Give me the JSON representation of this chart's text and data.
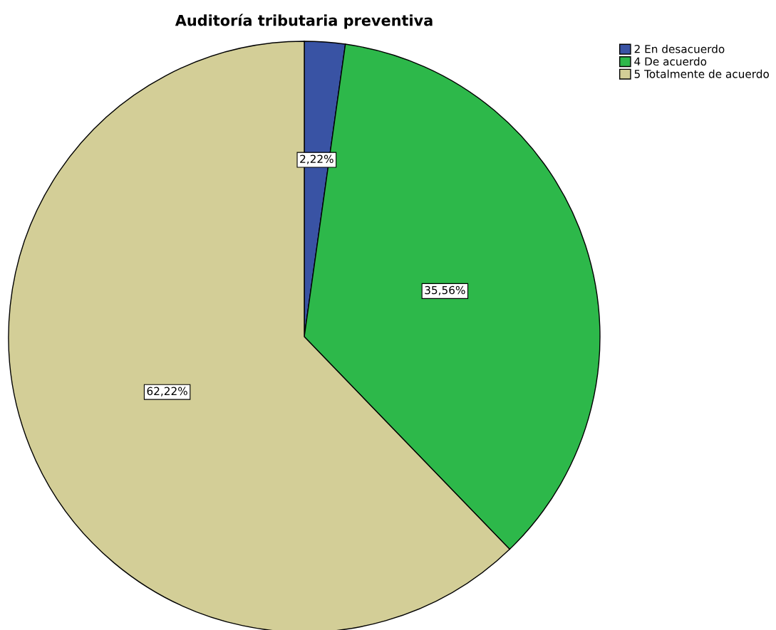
{
  "chart_data": {
    "type": "pie",
    "title": "Auditoría tributaria preventiva",
    "categories": [
      "2 En desacuerdo",
      "4 De acuerdo",
      "5 Totalmente de acuerdo"
    ],
    "values": [
      2.22,
      35.56,
      62.22
    ],
    "value_labels": [
      "2,22%",
      "35,56%",
      "62,22%"
    ],
    "colors": [
      "#3953a4",
      "#2db84a",
      "#d3ce97"
    ],
    "legend": "top right"
  }
}
